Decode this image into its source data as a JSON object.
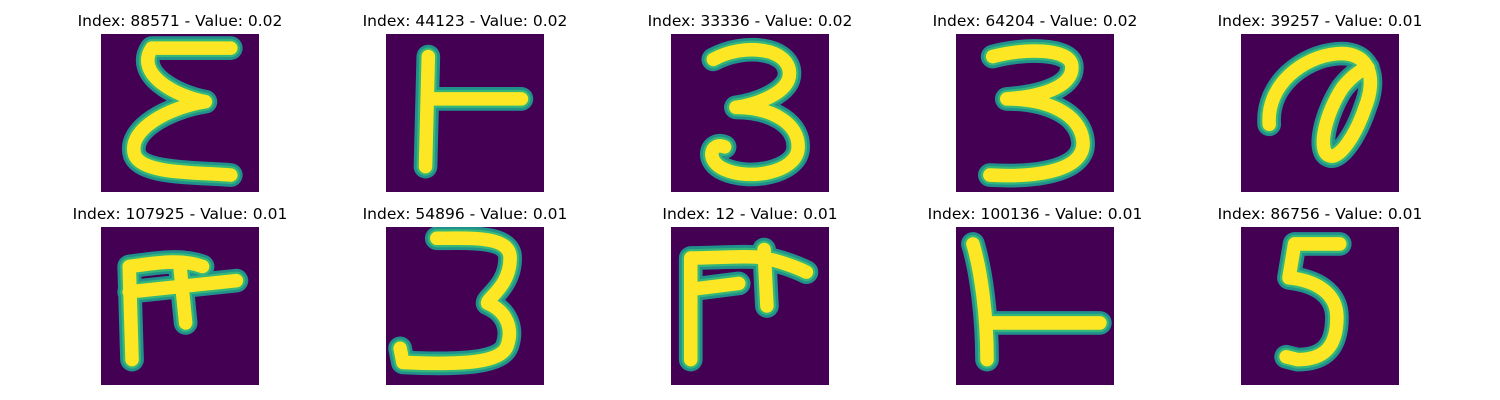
{
  "colors": {
    "background": "#440154",
    "stroke_outer": "#21918c",
    "stroke_mid": "#35b779",
    "stroke_core": "#fde725",
    "text": "#000000"
  },
  "panels": [
    {
      "index": "88571",
      "value": "0.02",
      "title": "Index: 88571 - Value: 0.02",
      "glyph": "epsilon-like stroke"
    },
    {
      "index": "44123",
      "value": "0.02",
      "title": "Index: 44123 - Value: 0.02",
      "glyph": "T rotated left"
    },
    {
      "index": "33336",
      "value": "0.02",
      "title": "Index: 33336 - Value: 0.02",
      "glyph": "digit three"
    },
    {
      "index": "64204",
      "value": "0.02",
      "title": "Index: 64204 - Value: 0.02",
      "glyph": "digit three"
    },
    {
      "index": "39257",
      "value": "0.01",
      "title": "Index: 39257 - Value: 0.01",
      "glyph": "loop stroke"
    },
    {
      "index": "107925",
      "value": "0.01",
      "title": "Index: 107925 - Value: 0.01",
      "glyph": "F-like stroke"
    },
    {
      "index": "54896",
      "value": "0.01",
      "title": "Index: 54896 - Value: 0.01",
      "glyph": "digit three"
    },
    {
      "index": "12",
      "value": "0.01",
      "title": "Index: 12 - Value: 0.01",
      "glyph": "F-like stroke"
    },
    {
      "index": "100136",
      "value": "0.01",
      "title": "Index: 100136 - Value: 0.01",
      "glyph": "L-like stroke"
    },
    {
      "index": "86756",
      "value": "0.01",
      "title": "Index: 86756 - Value: 0.01",
      "glyph": "digit five-like"
    }
  ]
}
